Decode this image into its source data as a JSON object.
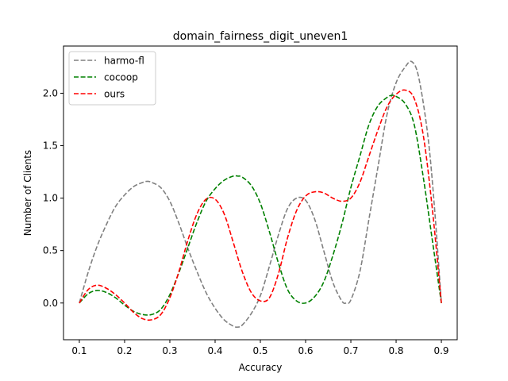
{
  "chart_data": {
    "type": "line",
    "title": "domain_fairness_digit_uneven1",
    "xlabel": "Accuracy",
    "ylabel": "Number of Clients",
    "xlim": [
      0.065,
      0.935
    ],
    "ylim": [
      -0.35,
      2.45
    ],
    "xticks": [
      0.1,
      0.2,
      0.3,
      0.4,
      0.5,
      0.6,
      0.7,
      0.8,
      0.9
    ],
    "xtick_labels": [
      "0.1",
      "0.2",
      "0.3",
      "0.4",
      "0.5",
      "0.6",
      "0.7",
      "0.8",
      "0.9"
    ],
    "yticks": [
      0.0,
      0.5,
      1.0,
      1.5,
      2.0
    ],
    "ytick_labels": [
      "0.0",
      "0.5",
      "1.0",
      "1.5",
      "2.0"
    ],
    "grid": false,
    "legend_position": "top-left",
    "series": [
      {
        "name": "harmo-fl",
        "color": "#808080",
        "x": [
          0.1,
          0.12,
          0.14,
          0.16,
          0.18,
          0.2,
          0.22,
          0.24,
          0.25,
          0.26,
          0.28,
          0.3,
          0.32,
          0.34,
          0.36,
          0.38,
          0.4,
          0.42,
          0.44,
          0.45,
          0.46,
          0.48,
          0.5,
          0.52,
          0.54,
          0.56,
          0.58,
          0.6,
          0.62,
          0.64,
          0.66,
          0.68,
          0.69,
          0.7,
          0.72,
          0.74,
          0.76,
          0.78,
          0.8,
          0.82,
          0.835,
          0.85,
          0.87,
          0.885,
          0.9
        ],
        "y": [
          0.0,
          0.3,
          0.55,
          0.75,
          0.92,
          1.03,
          1.11,
          1.15,
          1.16,
          1.15,
          1.1,
          0.97,
          0.76,
          0.52,
          0.3,
          0.1,
          -0.05,
          -0.16,
          -0.22,
          -0.23,
          -0.21,
          -0.1,
          0.07,
          0.35,
          0.65,
          0.9,
          1.0,
          0.98,
          0.8,
          0.5,
          0.2,
          0.02,
          0.0,
          0.03,
          0.3,
          0.8,
          1.3,
          1.8,
          2.1,
          2.25,
          2.3,
          2.15,
          1.6,
          0.9,
          0.0
        ]
      },
      {
        "name": "cocoop",
        "color": "#008000",
        "x": [
          0.1,
          0.12,
          0.14,
          0.16,
          0.18,
          0.2,
          0.22,
          0.24,
          0.26,
          0.28,
          0.3,
          0.32,
          0.34,
          0.36,
          0.38,
          0.4,
          0.42,
          0.44,
          0.45,
          0.46,
          0.48,
          0.5,
          0.52,
          0.54,
          0.56,
          0.58,
          0.6,
          0.62,
          0.64,
          0.66,
          0.68,
          0.7,
          0.72,
          0.74,
          0.76,
          0.78,
          0.79,
          0.8,
          0.82,
          0.84,
          0.86,
          0.88,
          0.9
        ],
        "y": [
          0.0,
          0.09,
          0.12,
          0.1,
          0.05,
          -0.02,
          -0.08,
          -0.11,
          -0.11,
          -0.06,
          0.08,
          0.29,
          0.53,
          0.77,
          0.97,
          1.09,
          1.17,
          1.21,
          1.21,
          1.2,
          1.12,
          0.95,
          0.68,
          0.38,
          0.13,
          0.02,
          0.0,
          0.06,
          0.2,
          0.45,
          0.75,
          1.1,
          1.4,
          1.7,
          1.88,
          1.96,
          1.98,
          1.97,
          1.9,
          1.7,
          1.2,
          0.6,
          0.0
        ]
      },
      {
        "name": "ours",
        "color": "#ff0000",
        "x": [
          0.1,
          0.12,
          0.14,
          0.16,
          0.18,
          0.2,
          0.22,
          0.24,
          0.26,
          0.28,
          0.3,
          0.32,
          0.34,
          0.36,
          0.38,
          0.4,
          0.42,
          0.44,
          0.46,
          0.48,
          0.5,
          0.52,
          0.54,
          0.56,
          0.58,
          0.6,
          0.62,
          0.64,
          0.66,
          0.68,
          0.7,
          0.72,
          0.74,
          0.76,
          0.78,
          0.8,
          0.82,
          0.84,
          0.86,
          0.88,
          0.9
        ],
        "y": [
          0.0,
          0.13,
          0.17,
          0.14,
          0.08,
          0.0,
          -0.09,
          -0.15,
          -0.16,
          -0.11,
          0.05,
          0.3,
          0.6,
          0.85,
          0.99,
          0.99,
          0.85,
          0.58,
          0.3,
          0.1,
          0.02,
          0.05,
          0.28,
          0.62,
          0.88,
          1.02,
          1.06,
          1.05,
          1.0,
          0.97,
          1.0,
          1.15,
          1.4,
          1.65,
          1.87,
          1.99,
          2.03,
          1.95,
          1.6,
          0.9,
          0.0
        ]
      }
    ]
  }
}
